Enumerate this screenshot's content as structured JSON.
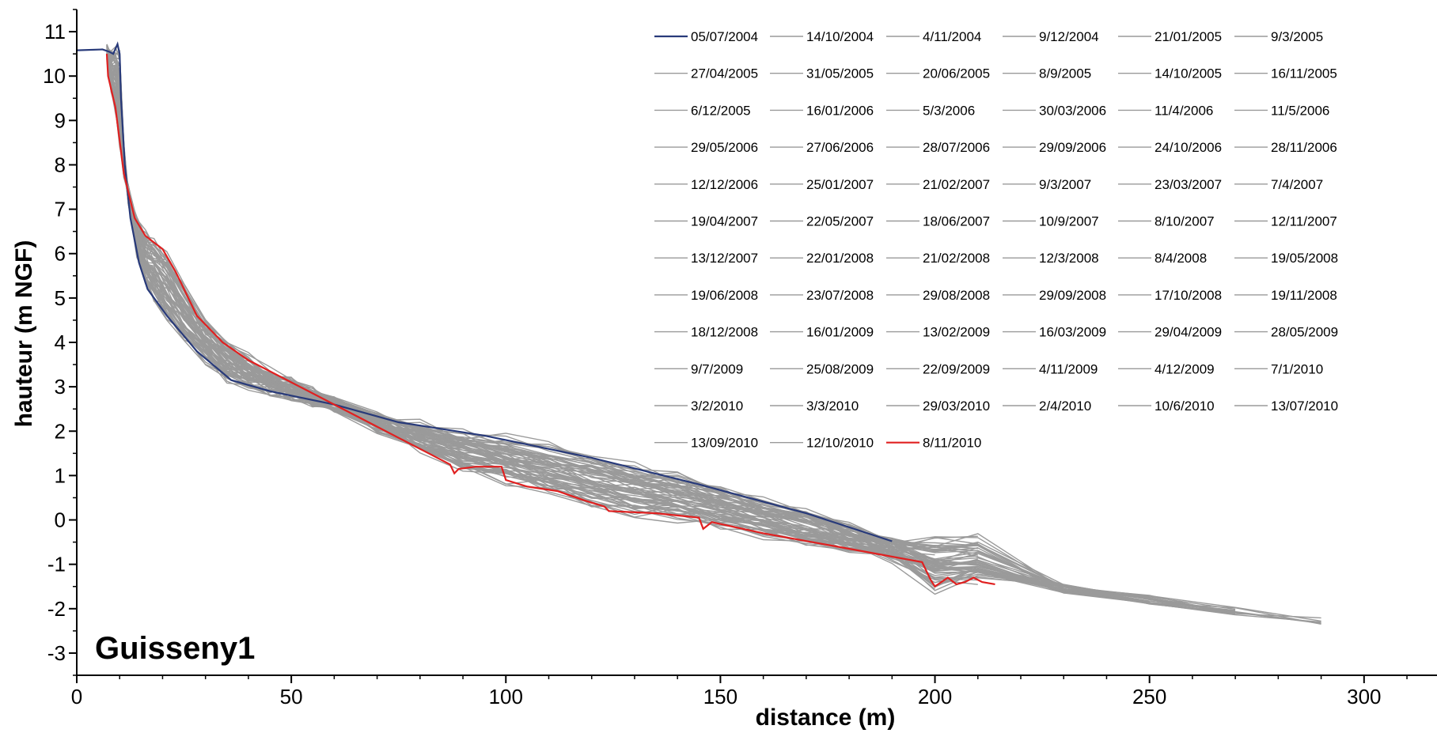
{
  "chart_data": {
    "type": "line",
    "title": "Guisseny1",
    "xlabel": "distance (m)",
    "ylabel": "hauteur (m NGF)",
    "xlim": [
      0,
      317
    ],
    "ylim": [
      -3.5,
      11.5
    ],
    "xticks": [
      0,
      50,
      100,
      150,
      200,
      250,
      300
    ],
    "yticks": [
      -3,
      -2,
      -1,
      0,
      1,
      2,
      3,
      4,
      5,
      6,
      7,
      8,
      9,
      10,
      11
    ],
    "grid": false,
    "legend_position": "top-right",
    "colors": {
      "first": "#283a7a",
      "last": "#e02020",
      "other": "#9a9a9a"
    },
    "legend": [
      "05/07/2004",
      "14/10/2004",
      "4/11/2004",
      "9/12/2004",
      "21/01/2005",
      "9/3/2005",
      "27/04/2005",
      "31/05/2005",
      "20/06/2005",
      "8/9/2005",
      "14/10/2005",
      "16/11/2005",
      "6/12/2005",
      "16/01/2006",
      "5/3/2006",
      "30/03/2006",
      "11/4/2006",
      "11/5/2006",
      "29/05/2006",
      "27/06/2006",
      "28/07/2006",
      "29/09/2006",
      "24/10/2006",
      "28/11/2006",
      "12/12/2006",
      "25/01/2007",
      "21/02/2007",
      "9/3/2007",
      "23/03/2007",
      "7/4/2007",
      "19/04/2007",
      "22/05/2007",
      "18/06/2007",
      "10/9/2007",
      "8/10/2007",
      "12/11/2007",
      "13/12/2007",
      "22/01/2008",
      "21/02/2008",
      "12/3/2008",
      "8/4/2008",
      "19/05/2008",
      "19/06/2008",
      "23/07/2008",
      "29/08/2008",
      "29/09/2008",
      "17/10/2008",
      "19/11/2008",
      "18/12/2008",
      "16/01/2009",
      "13/02/2009",
      "16/03/2009",
      "29/04/2009",
      "28/05/2009",
      "9/7/2009",
      "25/08/2009",
      "22/09/2009",
      "4/11/2009",
      "4/12/2009",
      "7/1/2010",
      "3/2/2010",
      "3/3/2010",
      "29/03/2010",
      "2/4/2010",
      "10/6/2010",
      "13/07/2010",
      "13/09/2010",
      "12/10/2010",
      "8/11/2010"
    ],
    "highlight_series": [
      {
        "name": "05/07/2004",
        "color": "#283a7a",
        "points": [
          [
            0,
            10.58
          ],
          [
            6,
            10.6
          ],
          [
            7.5,
            10.55
          ],
          [
            8.5,
            10.5
          ],
          [
            9.5,
            10.72
          ],
          [
            10,
            10.5
          ],
          [
            10.3,
            9.5
          ],
          [
            11.2,
            8
          ],
          [
            12.5,
            6.8
          ],
          [
            14.5,
            5.8
          ],
          [
            16.5,
            5.2
          ],
          [
            21,
            4.6
          ],
          [
            28,
            3.8
          ],
          [
            36,
            3.15
          ],
          [
            45,
            2.9
          ],
          [
            60,
            2.6
          ],
          [
            75,
            2.2
          ],
          [
            95,
            1.9
          ],
          [
            120,
            1.4
          ],
          [
            145,
            0.8
          ],
          [
            170,
            0.15
          ],
          [
            190,
            -0.48
          ]
        ]
      },
      {
        "name": "8/11/2010",
        "color": "#e02020",
        "points": [
          [
            7,
            10.5
          ],
          [
            7.3,
            10
          ],
          [
            9,
            9.3
          ],
          [
            11,
            7.8
          ],
          [
            13.5,
            6.8
          ],
          [
            16,
            6.4
          ],
          [
            20,
            6.1
          ],
          [
            23,
            5.6
          ],
          [
            28,
            4.6
          ],
          [
            34,
            4
          ],
          [
            40,
            3.6
          ],
          [
            50,
            3.1
          ],
          [
            60,
            2.6
          ],
          [
            68,
            2.2
          ],
          [
            75,
            1.85
          ],
          [
            82,
            1.5
          ],
          [
            87,
            1.25
          ],
          [
            88,
            1.05
          ],
          [
            89,
            1.15
          ],
          [
            93,
            1.2
          ],
          [
            99,
            1.2
          ],
          [
            100,
            0.9
          ],
          [
            105,
            0.75
          ],
          [
            112,
            0.65
          ],
          [
            118,
            0.45
          ],
          [
            123,
            0.3
          ],
          [
            124,
            0.2
          ],
          [
            135,
            0.15
          ],
          [
            145,
            0.05
          ],
          [
            146,
            -0.2
          ],
          [
            148,
            -0.05
          ],
          [
            160,
            -0.3
          ],
          [
            180,
            -0.65
          ],
          [
            197,
            -0.95
          ],
          [
            199,
            -1.35
          ],
          [
            200,
            -1.5
          ],
          [
            203,
            -1.3
          ],
          [
            205,
            -1.45
          ],
          [
            207,
            -1.4
          ],
          [
            209,
            -1.3
          ],
          [
            211,
            -1.4
          ],
          [
            214,
            -1.45
          ]
        ]
      }
    ]
  }
}
